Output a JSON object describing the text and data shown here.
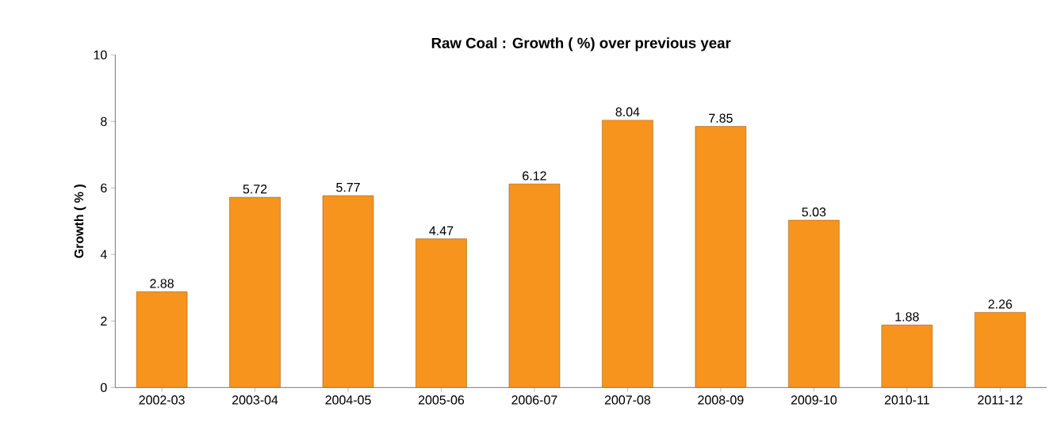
{
  "chart_data": {
    "type": "bar",
    "title": "Raw Coal : Growth ( %) over previous year",
    "ylabel": "Growth ( % )",
    "categories": [
      "2002-03",
      "2003-04",
      "2004-05",
      "2005-06",
      "2006-07",
      "2007-08",
      "2008-09",
      "2009-10",
      "2010-11",
      "2011-12"
    ],
    "values": [
      2.88,
      5.72,
      5.77,
      4.47,
      6.12,
      8.04,
      7.85,
      5.03,
      1.88,
      2.26
    ],
    "color": "#f7941d",
    "ylim": [
      0,
      10
    ],
    "yticks": [
      0,
      2,
      4,
      6,
      8,
      10
    ],
    "grid": false,
    "data_labels": true
  }
}
